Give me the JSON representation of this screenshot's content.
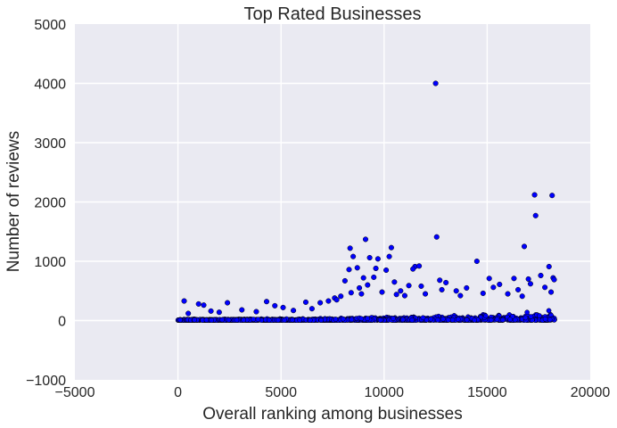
{
  "chart_data": {
    "type": "scatter",
    "title": "Top Rated Businesses",
    "xlabel": "Overall ranking among businesses",
    "ylabel": "Number of reviews",
    "xlim": [
      -5000,
      20000
    ],
    "ylim": [
      -1000,
      5000
    ],
    "xticks": [
      -5000,
      0,
      5000,
      10000,
      15000,
      20000
    ],
    "yticks": [
      -1000,
      0,
      1000,
      2000,
      3000,
      4000,
      5000
    ],
    "xtick_labels": [
      "−5000",
      "0",
      "5000",
      "10000",
      "15000",
      "20000"
    ],
    "ytick_labels": [
      "−1000",
      "0",
      "1000",
      "2000",
      "3000",
      "4000",
      "5000"
    ],
    "grid": true,
    "background_color": "#eaeaf2",
    "point_color": "#0000ff",
    "point_edge_color": "#000000",
    "x_range_of_points": [
      0,
      18300
    ],
    "points": [
      [
        12500,
        4000
      ],
      [
        17300,
        2120
      ],
      [
        18150,
        2110
      ],
      [
        17350,
        1770
      ],
      [
        12550,
        1410
      ],
      [
        9100,
        1370
      ],
      [
        16800,
        1250
      ],
      [
        10350,
        1230
      ],
      [
        8350,
        1220
      ],
      [
        8500,
        1080
      ],
      [
        10250,
        1080
      ],
      [
        9300,
        1060
      ],
      [
        9700,
        1040
      ],
      [
        14500,
        1000
      ],
      [
        11500,
        910
      ],
      [
        11700,
        920
      ],
      [
        18000,
        910
      ],
      [
        11400,
        870
      ],
      [
        8700,
        890
      ],
      [
        8300,
        860
      ],
      [
        9600,
        880
      ],
      [
        10100,
        850
      ],
      [
        17600,
        760
      ],
      [
        18200,
        720
      ],
      [
        18250,
        690
      ],
      [
        16300,
        710
      ],
      [
        17000,
        700
      ],
      [
        15100,
        710
      ],
      [
        9000,
        720
      ],
      [
        8100,
        670
      ],
      [
        9500,
        730
      ],
      [
        10500,
        650
      ],
      [
        12700,
        680
      ],
      [
        13000,
        640
      ],
      [
        15600,
        610
      ],
      [
        17100,
        620
      ],
      [
        17800,
        560
      ],
      [
        11800,
        580
      ],
      [
        11200,
        590
      ],
      [
        13500,
        500
      ],
      [
        14000,
        550
      ],
      [
        16000,
        450
      ],
      [
        16500,
        520
      ],
      [
        8800,
        550
      ],
      [
        9200,
        600
      ],
      [
        9900,
        480
      ],
      [
        10800,
        500
      ],
      [
        11000,
        420
      ],
      [
        12000,
        450
      ],
      [
        12800,
        520
      ],
      [
        15300,
        560
      ],
      [
        16700,
        410
      ],
      [
        18100,
        480
      ],
      [
        7600,
        380
      ],
      [
        7900,
        410
      ],
      [
        8400,
        470
      ],
      [
        8900,
        450
      ],
      [
        14800,
        460
      ],
      [
        13700,
        420
      ],
      [
        10600,
        440
      ],
      [
        1000,
        280
      ],
      [
        2400,
        300
      ],
      [
        4300,
        320
      ],
      [
        5100,
        220
      ],
      [
        300,
        330
      ],
      [
        1250,
        260
      ],
      [
        6200,
        310
      ],
      [
        6900,
        300
      ],
      [
        7300,
        330
      ],
      [
        7700,
        350
      ],
      [
        3100,
        180
      ],
      [
        3800,
        150
      ],
      [
        5600,
        170
      ],
      [
        6500,
        200
      ],
      [
        2000,
        140
      ],
      [
        500,
        120
      ],
      [
        1600,
        160
      ],
      [
        4700,
        250
      ]
    ]
  }
}
